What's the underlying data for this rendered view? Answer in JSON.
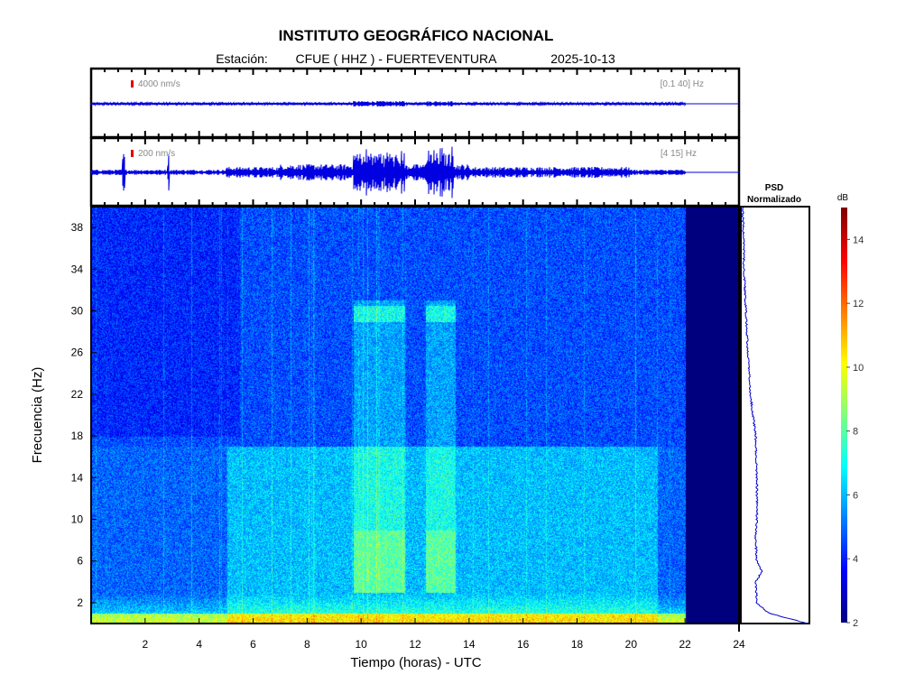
{
  "header": {
    "title": "INSTITUTO GEOGRÁFICO NACIONAL",
    "station_label": "Estación:",
    "station": "CFUE ( HHZ ) - FUERTEVENTURA",
    "date": "2025-10-13"
  },
  "traces": [
    {
      "scale": "4000 nm/s",
      "band": "[0.1 40] Hz",
      "scale_color": "#e00000",
      "color": "#0000e0"
    },
    {
      "scale": "200 nm/s",
      "band": "[4 15] Hz",
      "scale_color": "#e00000",
      "color": "#0000e0"
    }
  ],
  "psd": {
    "title_line1": "PSD",
    "title_line2": "Normalizado"
  },
  "chart_data": {
    "type": "heatmap",
    "title": "INSTITUTO GEOGRÁFICO NACIONAL",
    "xlabel": "Tiempo (horas) - UTC",
    "ylabel": "Frecuencia  (Hz)",
    "xlim": [
      0,
      24
    ],
    "ylim": [
      0,
      40
    ],
    "data_end_hour": 22,
    "x_ticks": [
      "2",
      "4",
      "6",
      "8",
      "10",
      "12",
      "14",
      "16",
      "18",
      "20",
      "22",
      "24"
    ],
    "y_ticks": [
      "2",
      "6",
      "10",
      "14",
      "18",
      "22",
      "26",
      "30",
      "34",
      "38"
    ],
    "colorbar": {
      "label": "dB",
      "range": [
        2,
        15
      ],
      "ticks": [
        "2",
        "4",
        "6",
        "8",
        "10",
        "12",
        "14"
      ],
      "colormap": "jet"
    },
    "activity_windows_hours": [
      [
        9.7,
        11.6
      ],
      [
        12.4,
        13.5
      ]
    ],
    "activity_band_hz": [
      3,
      31
    ],
    "psd_curve": {
      "freq_hz": [
        0,
        1,
        2,
        4,
        5,
        6,
        8,
        10,
        14,
        18,
        22,
        26,
        30,
        34,
        38,
        40
      ],
      "normalized": [
        1.0,
        0.4,
        0.22,
        0.2,
        0.3,
        0.22,
        0.2,
        0.22,
        0.22,
        0.2,
        0.12,
        0.08,
        0.05,
        0.02,
        0.01,
        0.0
      ]
    }
  }
}
